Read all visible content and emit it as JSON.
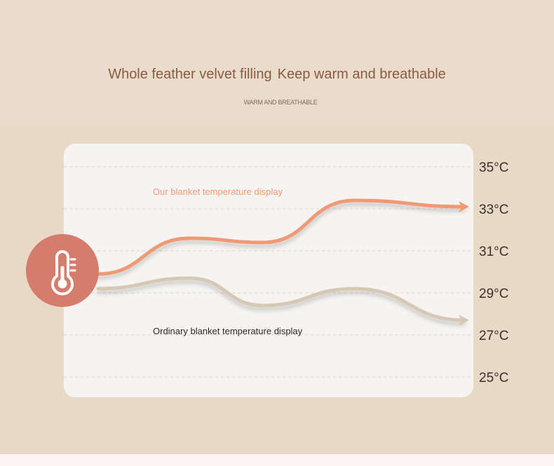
{
  "header": {
    "title_part1": "Whole feather velvet filling",
    "title_part2": "Keep warm and breathable",
    "subtitle": "WARM AND BREATHABLE"
  },
  "icons": {
    "badge": "thermometer-icon"
  },
  "colors": {
    "our_series": "#ef9a75",
    "ordinary_series": "#d7c8b5",
    "badge": "#d57c6c",
    "title": "#8a5a45"
  },
  "chart_data": {
    "type": "line",
    "title": "",
    "xlabel": "",
    "ylabel": "",
    "ylim": [
      25,
      35
    ],
    "yticks": [
      35,
      33,
      31,
      29,
      27,
      25
    ],
    "ytick_labels": [
      "35°C",
      "33°C",
      "31°C",
      "29°C",
      "27°C",
      "25°C"
    ],
    "grid": true,
    "x": [
      0,
      0.25,
      0.45,
      0.7,
      1
    ],
    "series": [
      {
        "name": "Our blanket temperature display",
        "values": [
          29.9,
          31.6,
          31.4,
          33.4,
          33.1
        ]
      },
      {
        "name": "Ordinary blanket temperature display",
        "values": [
          29.2,
          29.7,
          28.4,
          29.2,
          27.7
        ]
      }
    ]
  }
}
